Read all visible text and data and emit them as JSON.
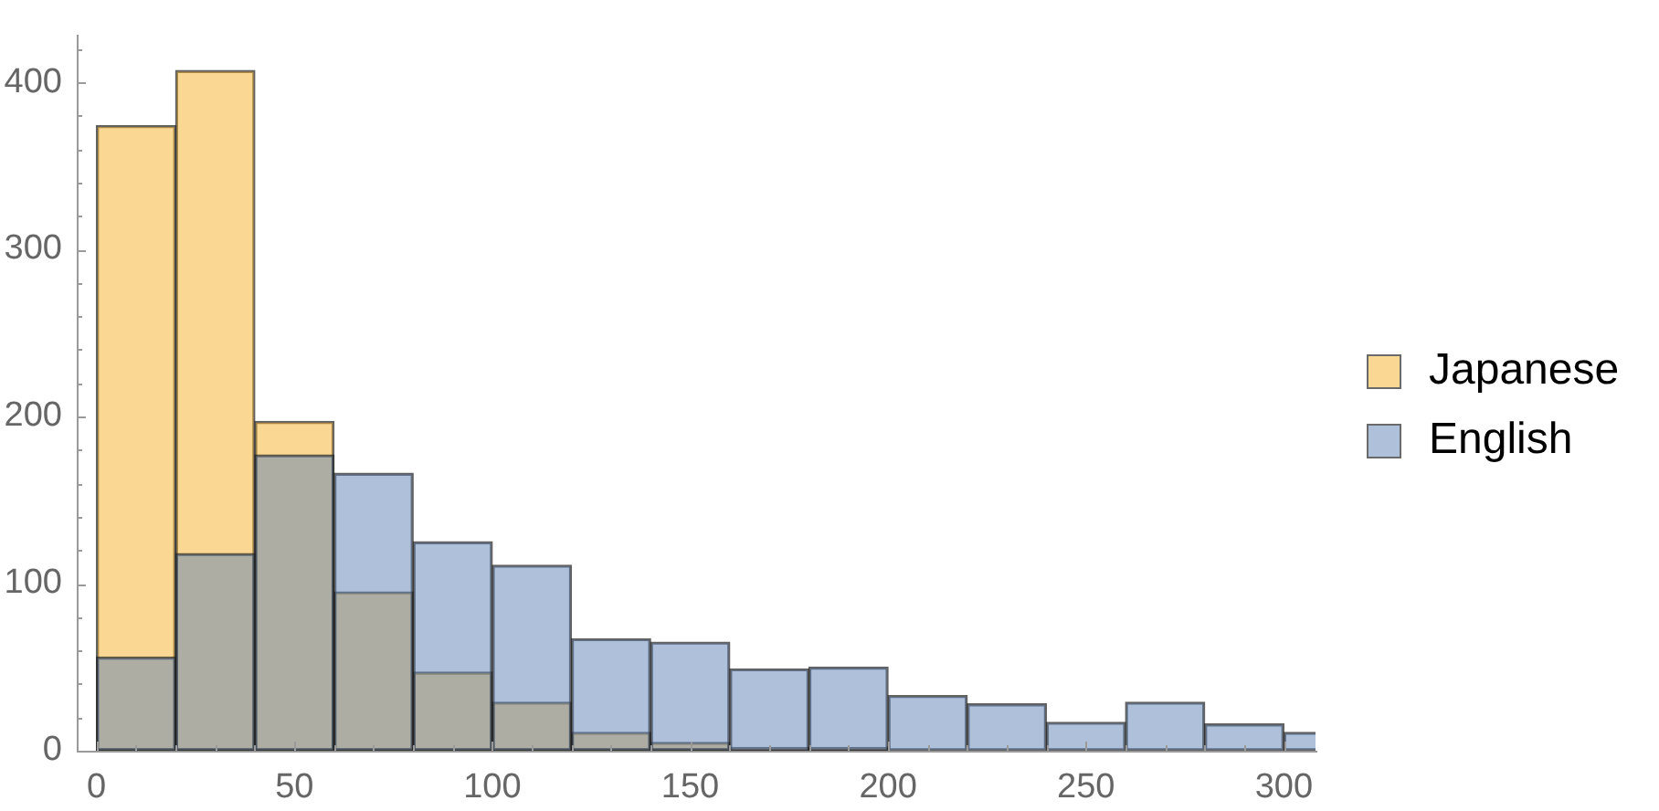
{
  "chart_data": {
    "type": "histogram",
    "bins": [
      0,
      20,
      40,
      60,
      80,
      100,
      120,
      140,
      160,
      180,
      200,
      220,
      240,
      260,
      280,
      300,
      320
    ],
    "series": [
      {
        "name": "Japanese",
        "color": "#fad792",
        "values": [
          374,
          407,
          197,
          95,
          47,
          29,
          11,
          5,
          2,
          2,
          0,
          0,
          0,
          0,
          0,
          0
        ]
      },
      {
        "name": "English",
        "color": "#afc1da",
        "values": [
          56,
          118,
          177,
          166,
          125,
          111,
          67,
          65,
          49,
          50,
          33,
          28,
          17,
          29,
          16,
          11
        ]
      }
    ],
    "xlim": [
      -5,
      308
    ],
    "ylim": [
      0,
      428
    ],
    "xticks": [
      0,
      {
        "value": 10,
        "label": null
      },
      {
        "value": 20,
        "label": null
      },
      {
        "value": 30,
        "label": null
      },
      {
        "value": 40,
        "label": null
      },
      50,
      {
        "value": 60,
        "label": null
      },
      {
        "value": 70,
        "label": null
      },
      {
        "value": 80,
        "label": null
      },
      {
        "value": 90,
        "label": null
      },
      100,
      {
        "value": 110,
        "label": null
      },
      {
        "value": 120,
        "label": null
      },
      {
        "value": 130,
        "label": null
      },
      {
        "value": 140,
        "label": null
      },
      150,
      {
        "value": 160,
        "label": null
      },
      {
        "value": 170,
        "label": null
      },
      {
        "value": 180,
        "label": null
      },
      {
        "value": 190,
        "label": null
      },
      200,
      {
        "value": 210,
        "label": null
      },
      {
        "value": 220,
        "label": null
      },
      {
        "value": 230,
        "label": null
      },
      {
        "value": 240,
        "label": null
      },
      250,
      {
        "value": 260,
        "label": null
      },
      {
        "value": 270,
        "label": null
      },
      {
        "value": 280,
        "label": null
      },
      {
        "value": 290,
        "label": null
      },
      300
    ],
    "yticks": [
      0,
      {
        "value": 20,
        "label": null
      },
      {
        "value": 40,
        "label": null
      },
      {
        "value": 60,
        "label": null
      },
      {
        "value": 80,
        "label": null
      },
      100,
      {
        "value": 120,
        "label": null
      },
      {
        "value": 140,
        "label": null
      },
      {
        "value": 160,
        "label": null
      },
      {
        "value": 180,
        "label": null
      },
      200,
      {
        "value": 220,
        "label": null
      },
      {
        "value": 240,
        "label": null
      },
      {
        "value": 260,
        "label": null
      },
      {
        "value": 280,
        "label": null
      },
      300,
      {
        "value": 320,
        "label": null
      },
      {
        "value": 340,
        "label": null
      },
      {
        "value": 360,
        "label": null
      },
      {
        "value": 380,
        "label": null
      },
      400,
      {
        "value": 420,
        "label": null
      }
    ],
    "grid": false,
    "legend": "right"
  }
}
